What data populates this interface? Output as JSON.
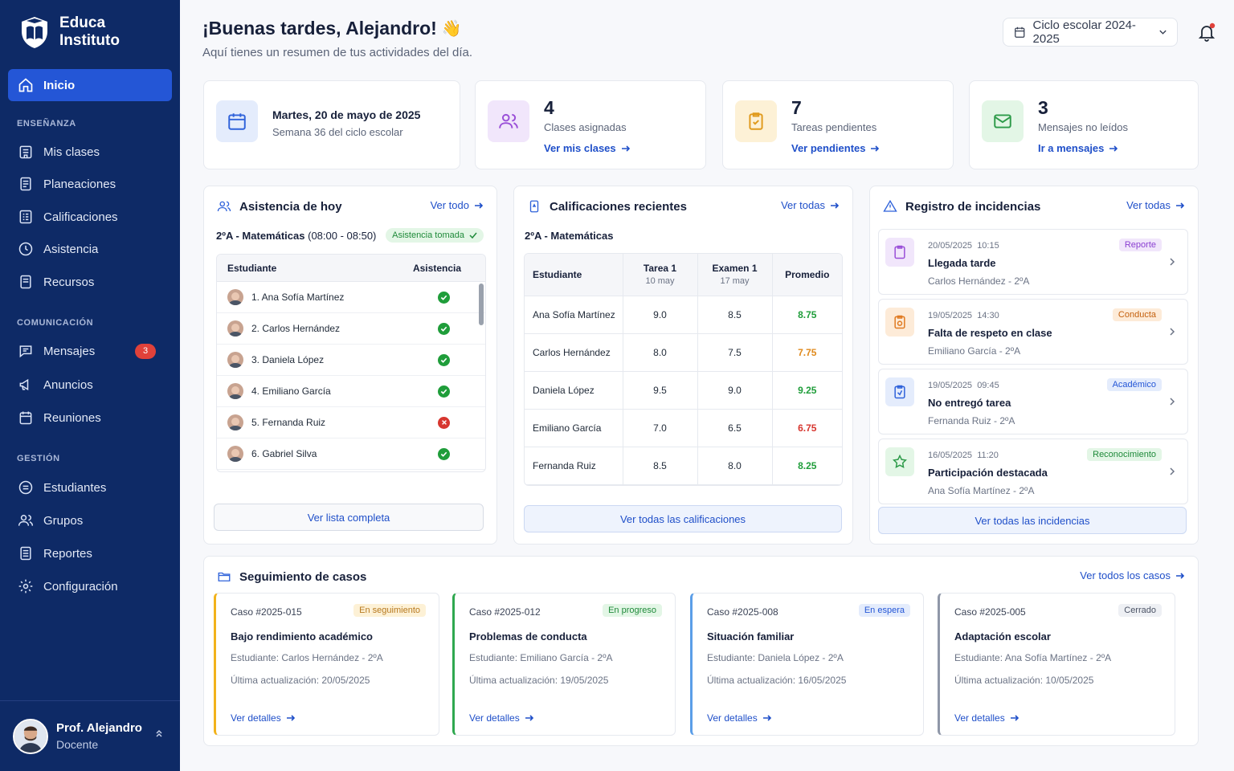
{
  "brand": {
    "name_line1": "Educa",
    "name_line2": "Instituto"
  },
  "sidebar": {
    "sections": {
      "teaching": "ENSEÑANZA",
      "communication": "COMUNICACIÓN",
      "management": "GESTIÓN"
    },
    "items": {
      "home": "Inicio",
      "classes": "Mis clases",
      "plans": "Planeaciones",
      "grades": "Calificaciones",
      "attendance": "Asistencia",
      "resources": "Recursos",
      "messages": "Mensajes",
      "messages_badge": "3",
      "announcements": "Anuncios",
      "meetings": "Reuniones",
      "students": "Estudiantes",
      "groups": "Grupos",
      "reports": "Reportes",
      "settings": "Configuración"
    },
    "profile": {
      "name": "Prof. Alejandro",
      "role": "Docente"
    }
  },
  "header": {
    "greeting": "¡Buenas tardes, Alejandro!",
    "emoji": "👋",
    "subtitle": "Aquí tienes un resumen de tus actividades del día.",
    "cycle": "Ciclo escolar 2024-2025"
  },
  "stats": {
    "date": {
      "title": "Martes, 20 de mayo de 2025",
      "subtitle": "Semana 36 del ciclo escolar"
    },
    "classes": {
      "value": "4",
      "label": "Clases asignadas",
      "link": "Ver mis clases"
    },
    "tasks": {
      "value": "7",
      "label": "Tareas pendientes",
      "link": "Ver pendientes"
    },
    "messages": {
      "value": "3",
      "label": "Mensajes no leídos",
      "link": "Ir a mensajes"
    }
  },
  "attendance": {
    "title": "Asistencia de hoy",
    "link": "Ver todo",
    "group": "2ºA - Matemáticas",
    "time": "(08:00 - 08:50)",
    "status_pill": "Asistencia tomada",
    "col_student": "Estudiante",
    "col_attendance": "Asistencia",
    "rows": [
      {
        "name": "1. Ana Sofía Martínez",
        "present": true
      },
      {
        "name": "2. Carlos Hernández",
        "present": true
      },
      {
        "name": "3. Daniela López",
        "present": true
      },
      {
        "name": "4. Emiliano García",
        "present": true
      },
      {
        "name": "5. Fernanda Ruiz",
        "present": false
      },
      {
        "name": "6. Gabriel Silva",
        "present": true
      }
    ],
    "button": "Ver lista completa"
  },
  "grades": {
    "title": "Calificaciones recientes",
    "link": "Ver todas",
    "group": "2ºA - Matemáticas",
    "headers": {
      "student": "Estudiante",
      "t1": "Tarea 1",
      "t1_date": "10 may",
      "e1": "Examen 1",
      "e1_date": "17 may",
      "avg": "Promedio"
    },
    "rows": [
      {
        "name": "Ana Sofía Martínez",
        "t1": "9.0",
        "e1": "8.5",
        "avg": "8.75",
        "color": "#1f9d3a"
      },
      {
        "name": "Carlos Hernández",
        "t1": "8.0",
        "e1": "7.5",
        "avg": "7.75",
        "color": "#e08a1c"
      },
      {
        "name": "Daniela López",
        "t1": "9.5",
        "e1": "9.0",
        "avg": "9.25",
        "color": "#1f9d3a"
      },
      {
        "name": "Emiliano García",
        "t1": "7.0",
        "e1": "6.5",
        "avg": "6.75",
        "color": "#d7362f"
      },
      {
        "name": "Fernanda Ruiz",
        "t1": "8.5",
        "e1": "8.0",
        "avg": "8.25",
        "color": "#1f9d3a"
      }
    ],
    "button": "Ver todas las calificaciones"
  },
  "incidents": {
    "title": "Registro de incidencias",
    "link": "Ver todas",
    "items": [
      {
        "date": "20/05/2025",
        "time": "10:15",
        "title": "Llegada tarde",
        "who": "Carlos Hernández - 2ºA",
        "tag": "Reporte",
        "tag_color": "#8a3fd1",
        "tag_bg": "#f1e6fb",
        "icon": "clipboard-icon",
        "icon_color": "#9a4fd8",
        "icon_bg": "#f1e6fb"
      },
      {
        "date": "19/05/2025",
        "time": "14:30",
        "title": "Falta de respeto en clase",
        "who": "Emiliano García - 2ºA",
        "tag": "Conducta",
        "tag_color": "#c4600e",
        "tag_bg": "#fdebd8",
        "icon": "alert-badge-icon",
        "icon_color": "#e07b22",
        "icon_bg": "#fdebd8"
      },
      {
        "date": "19/05/2025",
        "time": "09:45",
        "title": "No entregó tarea",
        "who": "Fernanda Ruiz - 2ºA",
        "tag": "Académico",
        "tag_color": "#2456d6",
        "tag_bg": "#e4ecfc",
        "icon": "clipboard-alert-icon",
        "icon_color": "#2f62da",
        "icon_bg": "#e4ecfc"
      },
      {
        "date": "16/05/2025",
        "time": "11:20",
        "title": "Participación destacada",
        "who": "Ana Sofía Martínez - 2ºA",
        "tag": "Reconocimiento",
        "tag_color": "#1f8a3a",
        "tag_bg": "#e3f6e6",
        "icon": "star-icon",
        "icon_color": "#2e9b4a",
        "icon_bg": "#e3f6e6"
      }
    ],
    "button": "Ver todas las incidencias"
  },
  "cases": {
    "title": "Seguimiento de casos",
    "link": "Ver todos los casos",
    "items": [
      {
        "id": "Caso #2025-015",
        "tag": "En seguimiento",
        "tag_color": "#b7791f",
        "tag_bg": "#fdf1d6",
        "accent": "#f2b21b",
        "title": "Bajo rendimiento académico",
        "student": "Estudiante: Carlos Hernández - 2ºA",
        "updated": "Última actualización: 20/05/2025",
        "link": "Ver detalles"
      },
      {
        "id": "Caso #2025-012",
        "tag": "En progreso",
        "tag_color": "#1f8a3a",
        "tag_bg": "#e3f6e6",
        "accent": "#2fa84f",
        "title": "Problemas de conducta",
        "student": "Estudiante: Emiliano García - 2ºA",
        "updated": "Última actualización: 19/05/2025",
        "link": "Ver detalles"
      },
      {
        "id": "Caso #2025-008",
        "tag": "En espera",
        "tag_color": "#2456d6",
        "tag_bg": "#e4ecfc",
        "accent": "#5b9ee8",
        "title": "Situación familiar",
        "student": "Estudiante: Daniela López - 2ºA",
        "updated": "Última actualización: 16/05/2025",
        "link": "Ver detalles"
      },
      {
        "id": "Caso #2025-005",
        "tag": "Cerrado",
        "tag_color": "#4b5365",
        "tag_bg": "#eef0f4",
        "accent": "#8f97a8",
        "title": "Adaptación escolar",
        "student": "Estudiante: Ana Sofía Martínez - 2ºA",
        "updated": "Última actualización: 10/05/2025",
        "link": "Ver detalles"
      }
    ]
  },
  "colors": {
    "sidebar": "#0e2a66",
    "accent": "#2456d6",
    "link": "#1f4fc9"
  }
}
